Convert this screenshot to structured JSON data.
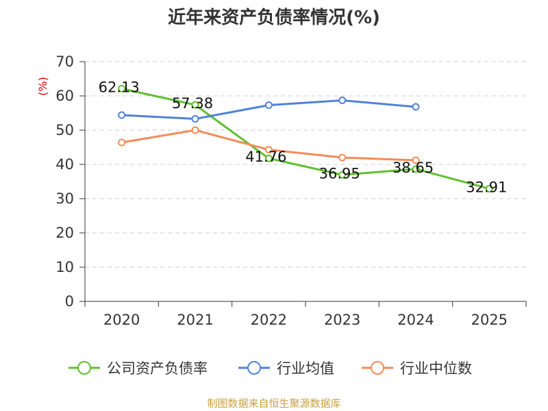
{
  "chart_data": {
    "type": "line",
    "title": "近年来资产负债率情况(%)",
    "ylabel": "(%)",
    "xlabel": "",
    "categories": [
      "2020",
      "2021",
      "2022",
      "2023",
      "2024",
      "2025"
    ],
    "ylim": [
      0,
      70
    ],
    "yticks": [
      0,
      10,
      20,
      30,
      40,
      50,
      60,
      70
    ],
    "grid": true,
    "legend_position": "bottom",
    "series": [
      {
        "name": "公司资产负债率",
        "color": "#5fc02c",
        "values": [
          62.13,
          57.38,
          41.76,
          36.95,
          38.65,
          32.91
        ],
        "labels": [
          "62.13",
          "57.38",
          "41.76",
          "36.95",
          "38.65",
          "32.91"
        ]
      },
      {
        "name": "行业均值",
        "color": "#4f82d9",
        "values": [
          54.4,
          53.3,
          57.3,
          58.7,
          56.8,
          null
        ],
        "labels": []
      },
      {
        "name": "行业中位数",
        "color": "#f58a58",
        "values": [
          46.4,
          50.0,
          44.3,
          42.0,
          41.2,
          null
        ],
        "labels": []
      }
    ]
  },
  "footer": {
    "source": "制图数据来自恒生聚源数据库",
    "source_color": "#c8a041"
  },
  "style": {
    "ylabel_color": "#cc0000",
    "axis_color": "#333333",
    "grid_color": "#cccccc"
  }
}
